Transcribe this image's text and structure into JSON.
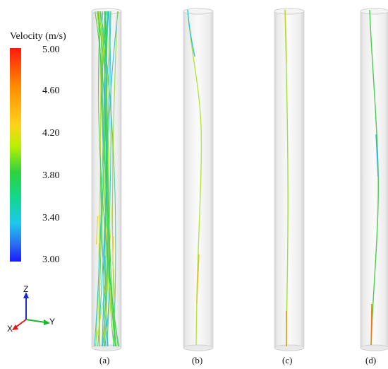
{
  "legend": {
    "title": "Velocity (m/s)",
    "ticks": [
      "5.00",
      "4.60",
      "4.20",
      "3.80",
      "3.40",
      "3.00"
    ],
    "colors": [
      "#ff1a0d",
      "#ff8c00",
      "#ffd21a",
      "#2fd23f",
      "#1ec8ee",
      "#1a1aff"
    ]
  },
  "panels": [
    {
      "label": "(a)"
    },
    {
      "label": "(b)"
    },
    {
      "label": "(c)"
    },
    {
      "label": "(d)"
    }
  ],
  "triad": {
    "z": "Z",
    "y": "Y",
    "x": "X"
  }
}
